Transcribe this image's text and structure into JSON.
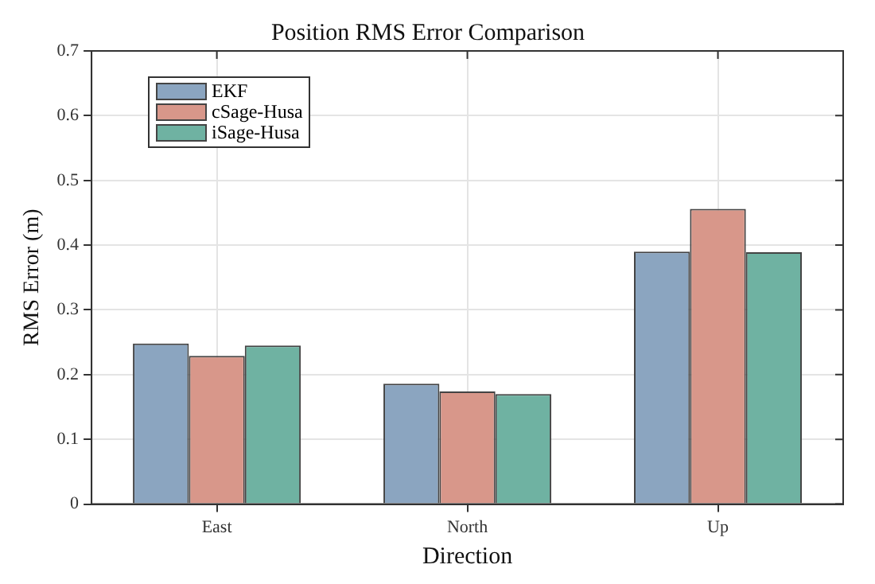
{
  "chart_data": {
    "type": "bar",
    "title": "Position RMS Error Comparison",
    "xlabel": "Direction",
    "ylabel": "RMS Error (m)",
    "categories": [
      "East",
      "North",
      "Up"
    ],
    "series": [
      {
        "name": "EKF",
        "color": "#8ba5c0",
        "values": [
          0.248,
          0.186,
          0.39
        ]
      },
      {
        "name": "cSage-Husa",
        "color": "#d8978a",
        "values": [
          0.229,
          0.174,
          0.456
        ]
      },
      {
        "name": "iSage-Husa",
        "color": "#6fb2a2",
        "values": [
          0.245,
          0.17,
          0.389
        ]
      }
    ],
    "ylim": [
      0,
      0.7
    ],
    "yticks": [
      0,
      0.1,
      0.2,
      0.3,
      0.4,
      0.5,
      0.6,
      0.7
    ],
    "grid": true,
    "legend": "top left"
  }
}
